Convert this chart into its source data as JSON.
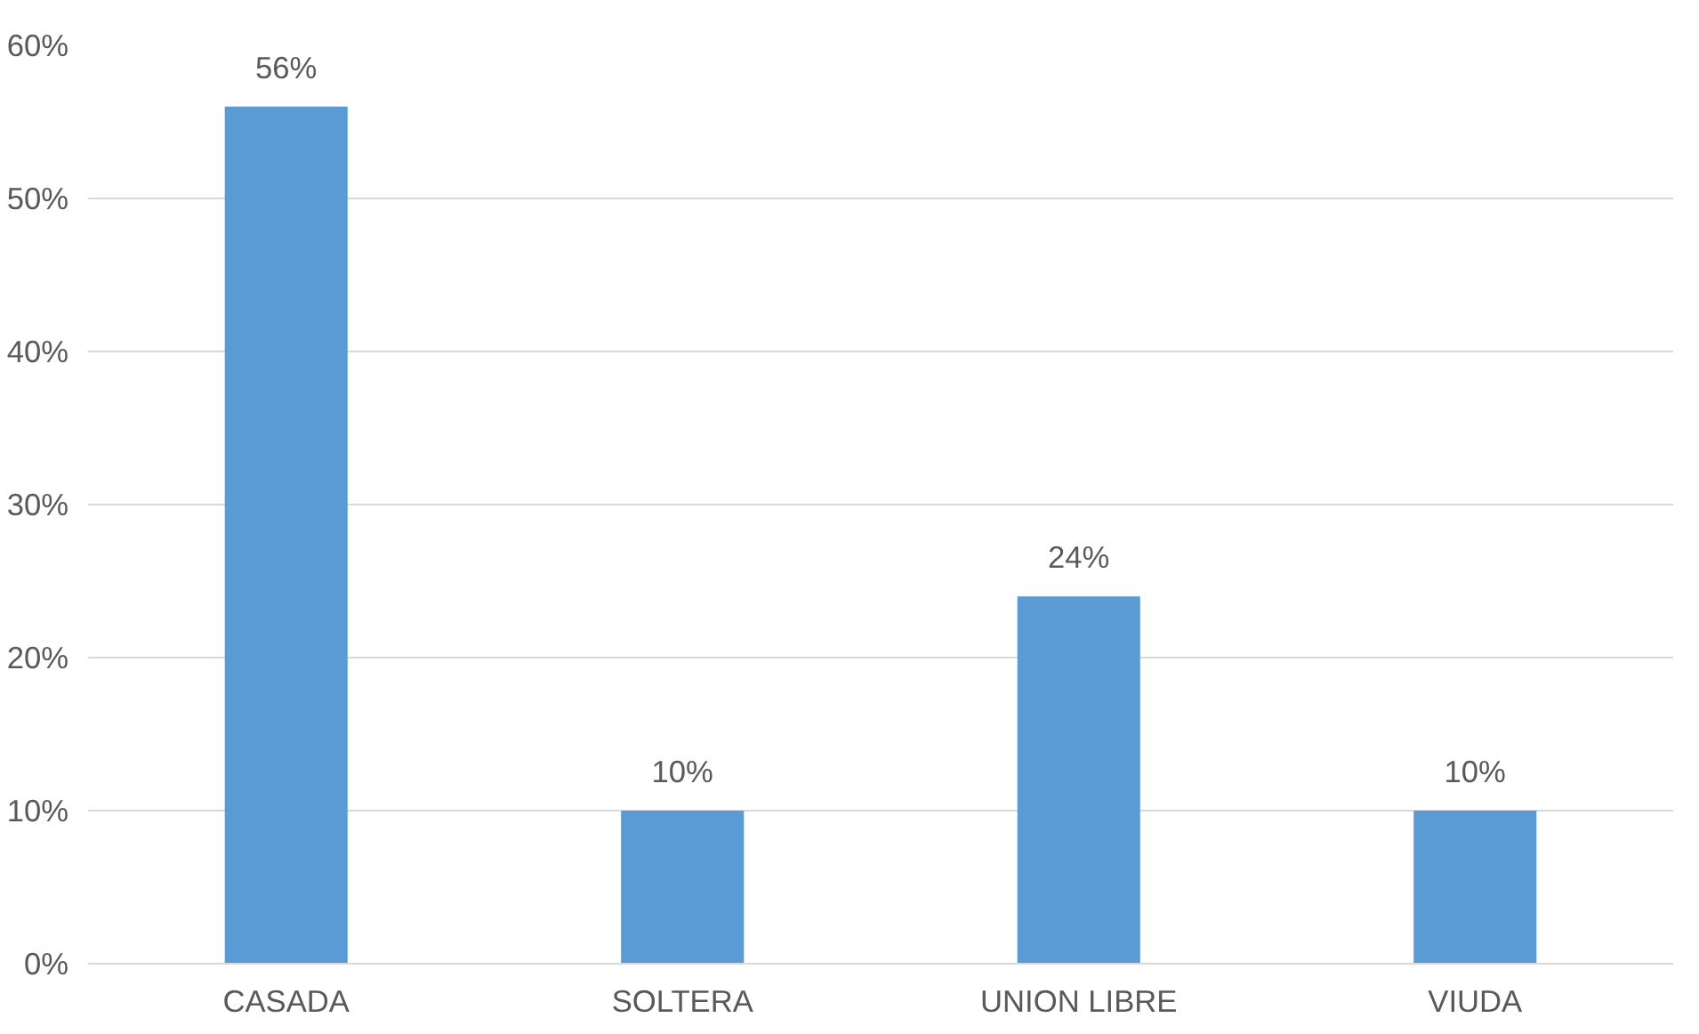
{
  "chart_data": {
    "type": "bar",
    "categories": [
      "CASADA",
      "SOLTERA",
      "UNION LIBRE",
      "VIUDA"
    ],
    "values": [
      56,
      10,
      24,
      10
    ],
    "color": "#5b9bd5",
    "value_labels": [
      "56%",
      "10%",
      "24%",
      "10%"
    ],
    "ylim": [
      0,
      60
    ],
    "yticks": [
      {
        "value": 0,
        "label": "0%"
      },
      {
        "value": 10,
        "label": "10%"
      },
      {
        "value": 20,
        "label": "20%"
      },
      {
        "value": 30,
        "label": "30%"
      },
      {
        "value": 40,
        "label": "40%"
      },
      {
        "value": 50,
        "label": "50%"
      },
      {
        "value": 60,
        "label": "60%"
      }
    ],
    "grid": "y"
  }
}
